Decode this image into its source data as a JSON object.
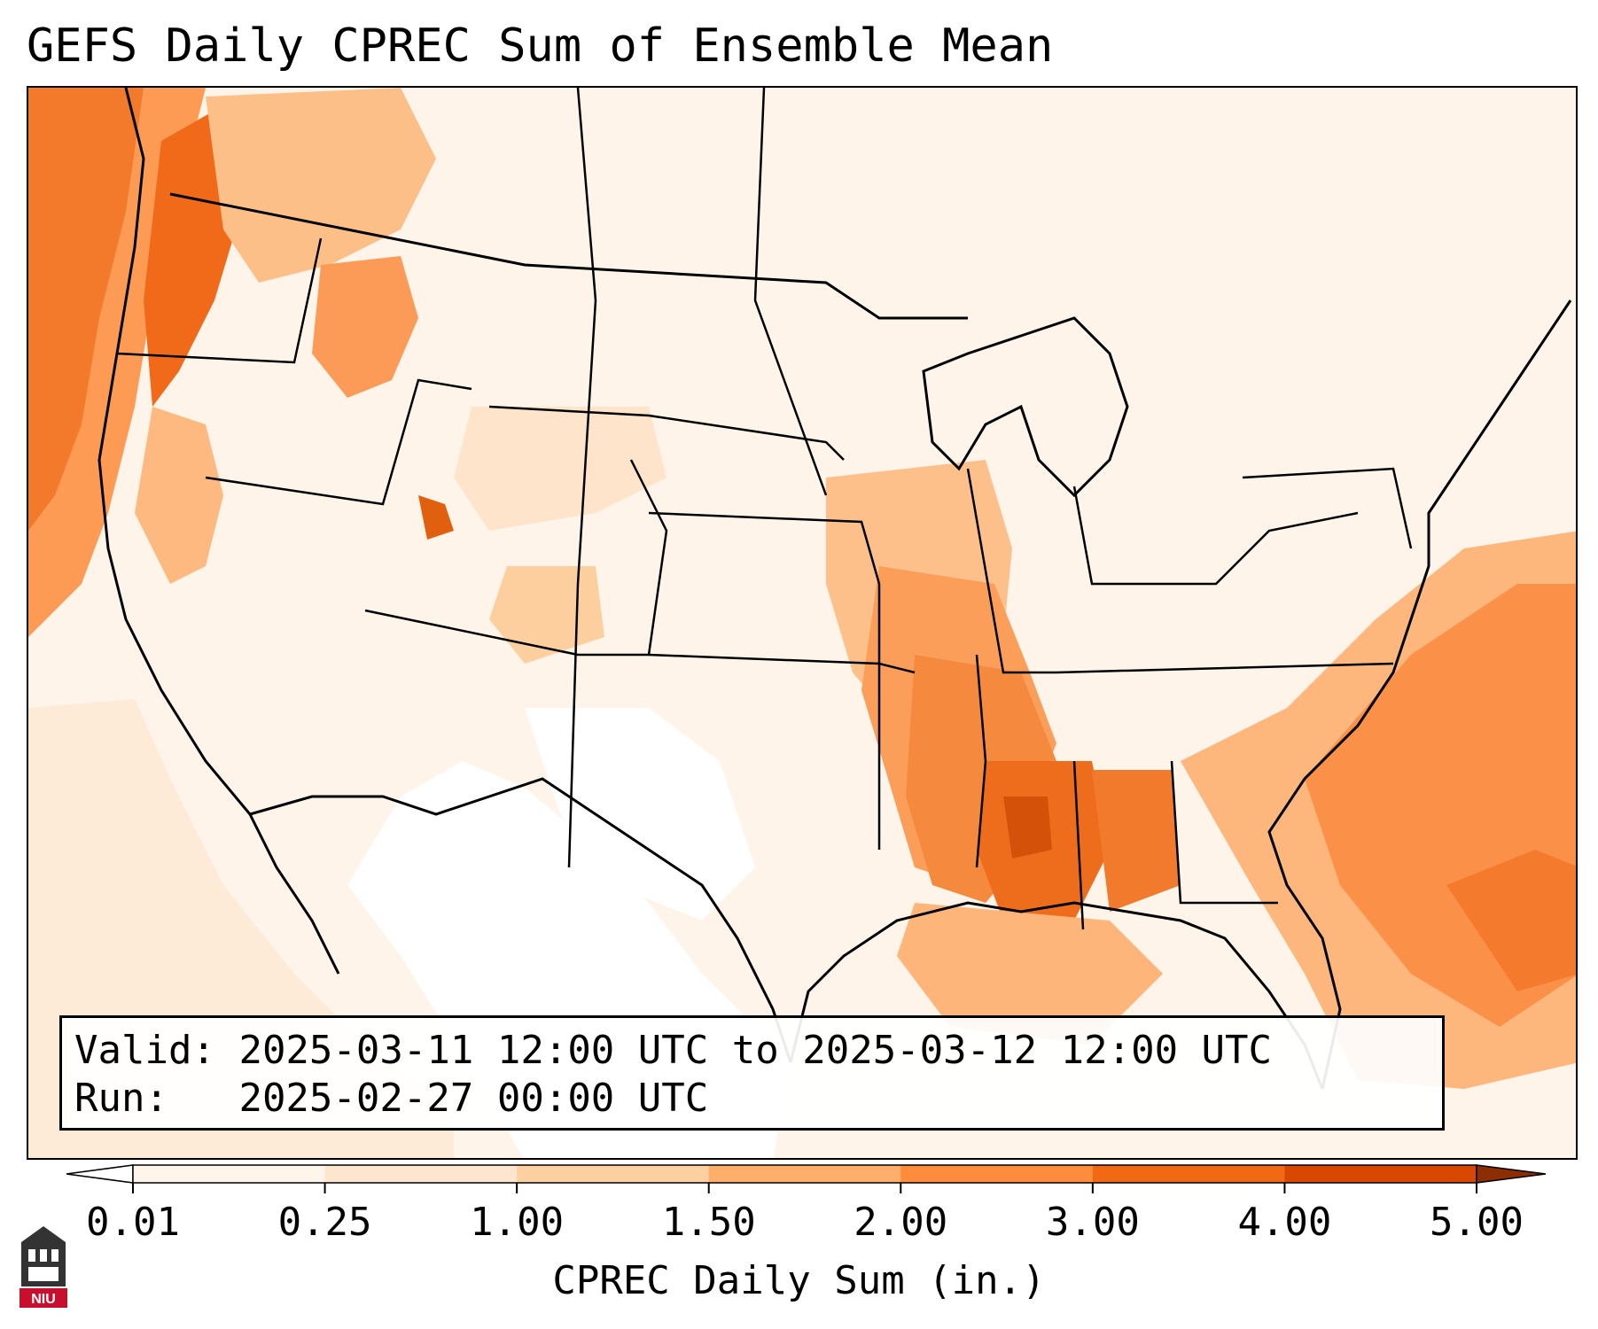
{
  "title": "GEFS Daily CPREC Sum of Ensemble Mean",
  "info": {
    "valid_label": "Valid:",
    "valid_value": "2025-03-11 12:00 UTC to 2025-03-12 12:00 UTC",
    "run_label": "Run:",
    "run_value": "2025-02-27 00:00 UTC"
  },
  "colorbar": {
    "label": "CPREC Daily Sum (in.)",
    "ticks": [
      "0.01",
      "0.25",
      "1.00",
      "1.50",
      "2.00",
      "3.00",
      "4.00",
      "5.00"
    ],
    "colors": [
      "#fff5eb",
      "#fee6ce",
      "#fdd0a2",
      "#fdae6b",
      "#fd8d3c",
      "#f16913",
      "#d94801",
      "#a63603"
    ],
    "under_color": "#ffffff",
    "over_color": "#8c2d04"
  },
  "map": {
    "projection": "Lambert Conformal, CONUS",
    "max_precip_regions": [
      "Pacific Northwest coast",
      "Mississippi",
      "Alabama",
      "Arkansas",
      "Missouri",
      "Western Atlantic offshore"
    ]
  },
  "logo": {
    "text": "NIU",
    "icon": "niu-tower-icon",
    "color": "#c8102e"
  }
}
